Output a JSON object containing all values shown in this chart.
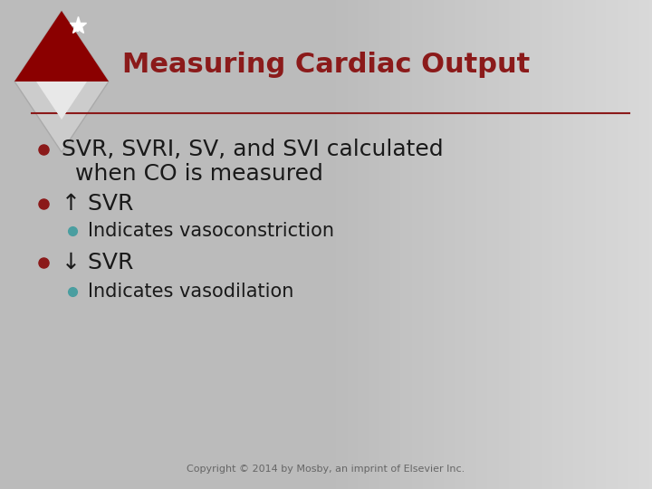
{
  "title": "Measuring Cardiac Output",
  "background_top": "#c8c8c8",
  "background_mid": "#e0e0e0",
  "background_color": "#d4d4d4",
  "title_color": "#8B1a1a",
  "line_color": "#8B1a1a",
  "bullet_color_dark": "#8B1a1a",
  "bullet_color_light": "#4a9ea0",
  "text_color": "#1a1a1a",
  "copyright_color": "#666666",
  "copyright": "Copyright © 2014 by Mosby, an imprint of Elsevier Inc.",
  "bullet1_line1": "SVR, SVRI, SV, and SVI calculated",
  "bullet1_line2": "when CO is measured",
  "bullet2": "↑ SVR",
  "sub_bullet2": "Indicates vasoconstriction",
  "bullet3": "↓ SVR",
  "sub_bullet3": "Indicates vasodilation",
  "title_fontsize": 22,
  "bullet_fontsize": 18,
  "sub_bullet_fontsize": 15,
  "copyright_fontsize": 8
}
